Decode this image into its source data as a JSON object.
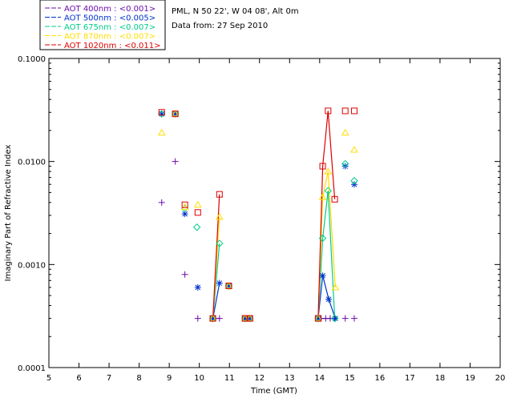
{
  "chart_data": {
    "type": "scatter",
    "site": "PML, N 50 22', W 04 08', Alt 0m",
    "date_text": "Data from: 27 Sep 2010",
    "xlabel": "Time (GMT)",
    "ylabel": "Imaginary Part of Refractive Index",
    "xlim": [
      5,
      20
    ],
    "ylim": [
      0.0001,
      0.1
    ],
    "yscale": "log",
    "xticks": [
      "5",
      "6",
      "7",
      "8",
      "9",
      "10",
      "11",
      "12",
      "13",
      "14",
      "15",
      "16",
      "17",
      "18",
      "19",
      "20"
    ],
    "yticks": [
      {
        "value": 0.0001,
        "label": "0.0001"
      },
      {
        "value": 0.001,
        "label": "0.0010"
      },
      {
        "value": 0.01,
        "label": "0.0100"
      },
      {
        "value": 0.1,
        "label": "0.1000"
      }
    ],
    "series": [
      {
        "name": "AOT 400nm : <0.001>",
        "color": "#6a0dad",
        "marker": "plus",
        "points": [
          [
            8.75,
            0.004
          ],
          [
            9.2,
            0.01
          ],
          [
            9.52,
            0.0008
          ],
          [
            9.95,
            0.0003
          ],
          [
            10.67,
            0.0003
          ],
          [
            11.52,
            0.0003
          ],
          [
            11.68,
            0.0003
          ],
          [
            13.95,
            0.0003
          ],
          [
            14.05,
            0.0003
          ],
          [
            14.2,
            0.0003
          ],
          [
            14.35,
            0.0003
          ],
          [
            14.5,
            0.0003
          ],
          [
            14.85,
            0.0003
          ],
          [
            15.15,
            0.0003
          ]
        ],
        "line_segments": [
          [
            [
              10.45,
              0.0003
            ],
            [
              10.67,
              0.0003
            ]
          ],
          [
            [
              13.95,
              0.0003
            ],
            [
              14.5,
              0.0003
            ]
          ]
        ]
      },
      {
        "name": "AOT 500nm : <0.005>",
        "color": "#0033cc",
        "marker": "star",
        "points": [
          [
            8.75,
            0.029
          ],
          [
            9.2,
            0.029
          ],
          [
            9.52,
            0.0031
          ],
          [
            9.95,
            0.0006
          ],
          [
            10.45,
            0.0003
          ],
          [
            10.67,
            0.00066
          ],
          [
            10.98,
            0.00062
          ],
          [
            11.52,
            0.0003
          ],
          [
            11.68,
            0.0003
          ],
          [
            13.95,
            0.0003
          ],
          [
            14.1,
            0.00078
          ],
          [
            14.3,
            0.00046
          ],
          [
            14.52,
            0.0003
          ],
          [
            14.85,
            0.009
          ],
          [
            15.15,
            0.006
          ]
        ],
        "line_segments": [
          [
            [
              10.45,
              0.0003
            ],
            [
              10.67,
              0.00066
            ]
          ],
          [
            [
              13.95,
              0.0003
            ],
            [
              14.1,
              0.00078
            ],
            [
              14.3,
              0.00046
            ],
            [
              14.52,
              0.0003
            ]
          ]
        ]
      },
      {
        "name": "AOT 675nm : <0.007>",
        "color": "#00cc88",
        "marker": "diamond",
        "points": [
          [
            8.75,
            0.029
          ],
          [
            9.2,
            0.029
          ],
          [
            9.52,
            0.0035
          ],
          [
            9.92,
            0.0023
          ],
          [
            10.45,
            0.0003
          ],
          [
            10.67,
            0.0016
          ],
          [
            10.98,
            0.00062
          ],
          [
            11.52,
            0.0003
          ],
          [
            11.68,
            0.0003
          ],
          [
            13.95,
            0.0003
          ],
          [
            14.1,
            0.0018
          ],
          [
            14.28,
            0.0052
          ],
          [
            14.5,
            0.0003
          ],
          [
            14.85,
            0.0095
          ],
          [
            15.15,
            0.0065
          ]
        ],
        "line_segments": [
          [
            [
              10.45,
              0.0003
            ],
            [
              10.67,
              0.0016
            ]
          ],
          [
            [
              13.95,
              0.0003
            ],
            [
              14.1,
              0.0018
            ],
            [
              14.28,
              0.0052
            ],
            [
              14.5,
              0.0003
            ]
          ]
        ]
      },
      {
        "name": "AOT 870nm : <0.007>",
        "color": "#ffdd00",
        "marker": "triangle",
        "points": [
          [
            8.75,
            0.019
          ],
          [
            9.2,
            0.029
          ],
          [
            9.52,
            0.0036
          ],
          [
            9.95,
            0.0038
          ],
          [
            10.45,
            0.0003
          ],
          [
            10.67,
            0.0029
          ],
          [
            10.98,
            0.00062
          ],
          [
            11.52,
            0.0003
          ],
          [
            11.68,
            0.0003
          ],
          [
            13.95,
            0.0003
          ],
          [
            14.1,
            0.0045
          ],
          [
            14.28,
            0.008
          ],
          [
            14.52,
            0.0006
          ],
          [
            14.85,
            0.019
          ],
          [
            15.15,
            0.013
          ]
        ],
        "line_segments": [
          [
            [
              10.45,
              0.0003
            ],
            [
              10.67,
              0.0029
            ]
          ],
          [
            [
              13.95,
              0.0003
            ],
            [
              14.1,
              0.0045
            ],
            [
              14.28,
              0.008
            ],
            [
              14.52,
              0.0006
            ]
          ]
        ]
      },
      {
        "name": "AOT 1020nm : <0.011>",
        "color": "#dd0000",
        "marker": "square",
        "points": [
          [
            8.75,
            0.03
          ],
          [
            9.2,
            0.029
          ],
          [
            9.52,
            0.0038
          ],
          [
            9.95,
            0.0032
          ],
          [
            10.45,
            0.0003
          ],
          [
            10.67,
            0.0048
          ],
          [
            10.98,
            0.00062
          ],
          [
            11.52,
            0.0003
          ],
          [
            11.68,
            0.0003
          ],
          [
            13.95,
            0.0003
          ],
          [
            14.1,
            0.009
          ],
          [
            14.28,
            0.031
          ],
          [
            14.5,
            0.0043
          ],
          [
            14.85,
            0.031
          ],
          [
            15.15,
            0.031
          ]
        ],
        "line_segments": [
          [
            [
              10.45,
              0.0003
            ],
            [
              10.67,
              0.0048
            ]
          ],
          [
            [
              13.95,
              0.0003
            ],
            [
              14.1,
              0.009
            ],
            [
              14.28,
              0.031
            ],
            [
              14.5,
              0.0043
            ]
          ]
        ]
      }
    ]
  }
}
